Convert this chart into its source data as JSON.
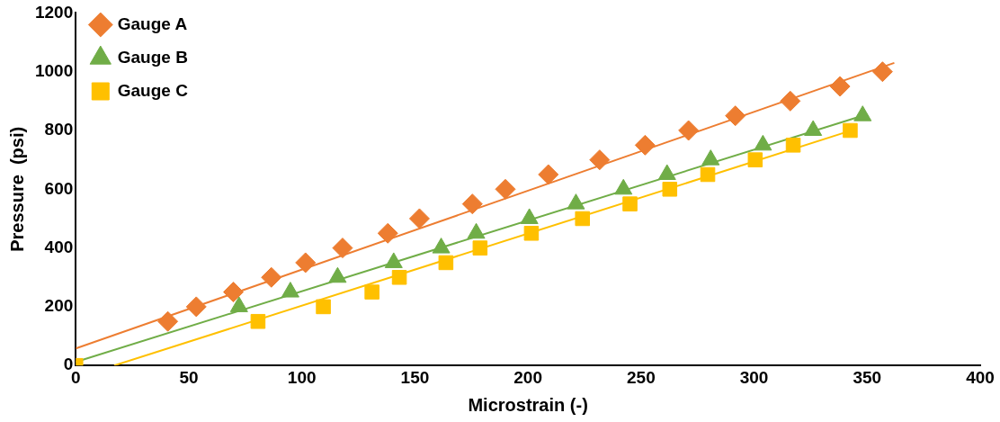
{
  "chart_data": {
    "type": "scatter",
    "xlabel": "Microstrain (-)",
    "ylabel": "Pressure  (psi)",
    "xlim": [
      0,
      400
    ],
    "xticks": [
      0,
      50,
      100,
      150,
      200,
      250,
      300,
      350,
      400
    ],
    "ylim": [
      0,
      1200
    ],
    "yticks": [
      0,
      200,
      400,
      600,
      800,
      1000,
      1200
    ],
    "grid": false,
    "legend": "top left",
    "series": [
      {
        "name": "Gauge A",
        "color": "#ed7d31",
        "marker": "diamond",
        "x": [
          40.7,
          53.3,
          69.7,
          86.5,
          101.6,
          118,
          138,
          152,
          175.4,
          190,
          209,
          231.7,
          251.8,
          271,
          291.7,
          316,
          338,
          356.8
        ],
        "values": [
          150,
          200,
          250,
          300,
          350,
          400,
          450,
          500,
          550,
          600,
          650,
          700,
          750,
          800,
          850,
          900,
          950,
          1000
        ]
      },
      {
        "name": "Gauge B",
        "color": "#70ad47",
        "marker": "triangle",
        "x": [
          72.2,
          94.9,
          115.8,
          140.6,
          161.6,
          177.1,
          200.6,
          221.2,
          242.2,
          261.5,
          280.8,
          303.9,
          326.1,
          348
        ],
        "values": [
          200,
          250,
          300,
          350,
          400,
          450,
          500,
          550,
          600,
          650,
          700,
          750,
          800,
          850
        ]
      },
      {
        "name": "Gauge C",
        "color": "#ffc000",
        "marker": "square",
        "x": [
          0,
          80.6,
          109.5,
          131,
          143.1,
          163.7,
          178.8,
          201.5,
          224.1,
          245.1,
          262.7,
          279.5,
          300.5,
          317.3,
          342.5
        ],
        "values": [
          0,
          150,
          200,
          250,
          300,
          350,
          400,
          450,
          500,
          550,
          600,
          650,
          700,
          750,
          800
        ]
      },
      {
        "type": "line",
        "color": "#ed7d31",
        "marker": "none",
        "x": [
          0,
          362
        ],
        "values": [
          58,
          1030
        ]
      },
      {
        "type": "line",
        "color": "#70ad47",
        "marker": "none",
        "x": [
          0,
          350
        ],
        "values": [
          12,
          855
        ]
      },
      {
        "type": "line",
        "color": "#ffc000",
        "marker": "none",
        "x": [
          17,
          345
        ],
        "values": [
          0,
          805
        ]
      }
    ]
  }
}
